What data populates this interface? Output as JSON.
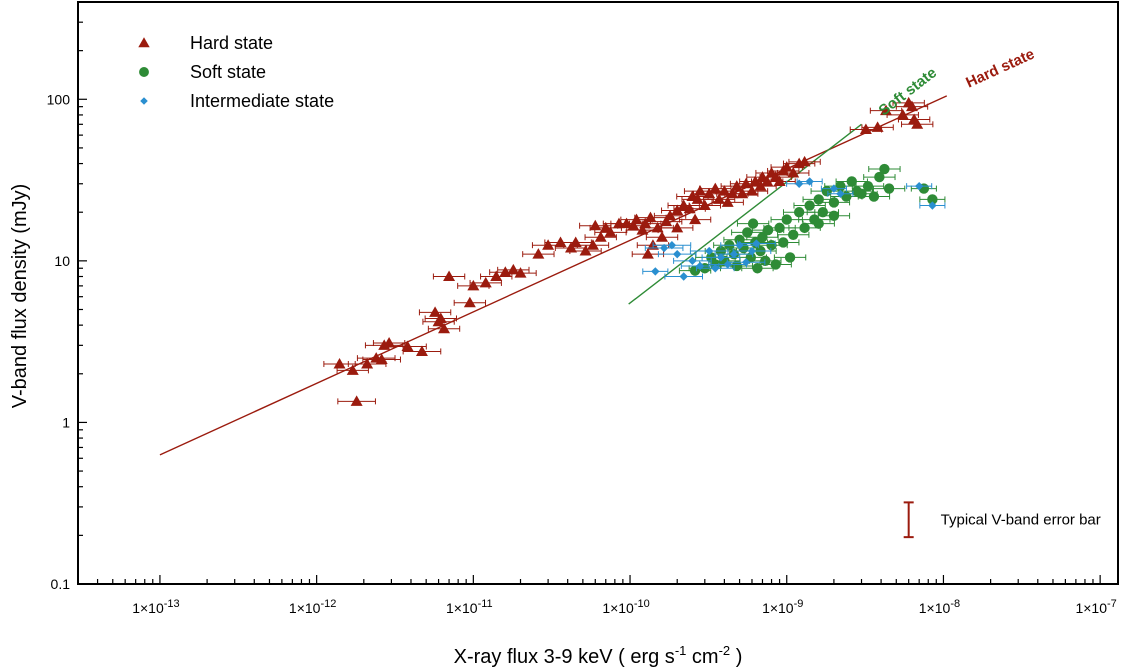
{
  "chart_data": {
    "type": "scatter",
    "x_scale": "log",
    "y_scale": "log",
    "xlim": [
      3e-14,
      1.3e-07
    ],
    "ylim": [
      0.1,
      400
    ],
    "grid": false,
    "legend_position": "top-left",
    "xlabel": {
      "main": "X-ray flux 3-9 keV ( erg s",
      "sup1": "-1",
      "mid": " cm",
      "sup2": "-2",
      "end": " )"
    },
    "ylabel": "V-band flux density (mJy)",
    "x_ticks": [
      {
        "value": 1e-13,
        "base": "1×10",
        "exp": "-13"
      },
      {
        "value": 1e-12,
        "base": "1×10",
        "exp": "-12"
      },
      {
        "value": 1e-11,
        "base": "1×10",
        "exp": "-11"
      },
      {
        "value": 1e-10,
        "base": "1×10",
        "exp": "-10"
      },
      {
        "value": 1e-09,
        "base": "1×10",
        "exp": "-9"
      },
      {
        "value": 1e-08,
        "base": "1×10",
        "exp": "-8"
      },
      {
        "value": 1e-07,
        "base": "1×10",
        "exp": "-7"
      }
    ],
    "y_ticks": [
      {
        "value": 0.1,
        "label": "0.1"
      },
      {
        "value": 1,
        "label": "1"
      },
      {
        "value": 10,
        "label": "10"
      },
      {
        "value": 100,
        "label": "100"
      }
    ],
    "colors": {
      "hard": "#9b1b0e",
      "soft": "#2e8b36",
      "intermediate": "#2a8fd0"
    },
    "legend": [
      {
        "key": "hard",
        "label": "Hard state",
        "marker": "triangle"
      },
      {
        "key": "soft",
        "label": "Soft state",
        "marker": "circle"
      },
      {
        "key": "intermediate",
        "label": "Intermediate state",
        "marker": "diamond"
      }
    ],
    "fit_lines": [
      {
        "key": "hard",
        "label": "Hard state",
        "x": [
          1e-13,
          1.05e-08
        ],
        "y": [
          0.63,
          105
        ]
      },
      {
        "key": "soft",
        "label": "Soft state",
        "x": [
          9.8e-11,
          3e-09
        ],
        "y": [
          5.4,
          70
        ]
      }
    ],
    "annotation": {
      "text": "Typical V-band error bar",
      "x": 6e-09,
      "y": 0.25,
      "err_low": 0.195,
      "err_high": 0.32
    },
    "series": [
      {
        "name": "Hard state",
        "key": "hard",
        "marker": "triangle",
        "points": [
          [
            1.4e-12,
            2.3,
            0.1
          ],
          [
            1.7e-12,
            2.1,
            0.1
          ],
          [
            1.8e-12,
            1.35,
            0.12
          ],
          [
            2.1e-12,
            2.3,
            0.12
          ],
          [
            2.4e-12,
            2.5,
            0.12
          ],
          [
            2.6e-12,
            2.45,
            0.12
          ],
          [
            2.7e-12,
            3.0,
            0.12
          ],
          [
            2.9e-12,
            3.1,
            0.1
          ],
          [
            3.8e-12,
            2.95,
            0.12
          ],
          [
            4.7e-12,
            2.75,
            0.12
          ],
          [
            5.7e-12,
            4.8,
            0.1
          ],
          [
            6.2e-12,
            4.4,
            0.1
          ],
          [
            6.5e-12,
            3.8,
            0.1
          ],
          [
            6e-12,
            4.2,
            0.1
          ],
          [
            7e-12,
            8.0,
            0.1
          ],
          [
            9.5e-12,
            5.5,
            0.1
          ],
          [
            1e-11,
            7.0,
            0.1
          ],
          [
            1.2e-11,
            7.3,
            0.1
          ],
          [
            1.4e-11,
            8.0,
            0.1
          ],
          [
            1.6e-11,
            8.5,
            0.1
          ],
          [
            1.8e-11,
            8.8,
            0.1
          ],
          [
            2e-11,
            8.4,
            0.1
          ],
          [
            2.6e-11,
            11.0,
            0.1
          ],
          [
            3e-11,
            12.5,
            0.1
          ],
          [
            3.6e-11,
            13.0,
            0.1
          ],
          [
            4.2e-11,
            12.0,
            0.1
          ],
          [
            4.5e-11,
            13.0,
            0.1
          ],
          [
            5.2e-11,
            11.5,
            0.1
          ],
          [
            5.8e-11,
            12.5,
            0.1
          ],
          [
            6.5e-11,
            14.0,
            0.1
          ],
          [
            7e-11,
            16.0,
            0.1
          ],
          [
            7.5e-11,
            15.0,
            0.1
          ],
          [
            6e-11,
            16.5,
            0.1
          ],
          [
            8.5e-11,
            17.0,
            0.1
          ],
          [
            9.5e-11,
            17.0,
            0.1
          ],
          [
            1.05e-10,
            16.5,
            0.1
          ],
          [
            1.1e-10,
            18.0,
            0.1
          ],
          [
            1.2e-10,
            15.5,
            0.1
          ],
          [
            1.25e-10,
            17.0,
            0.1
          ],
          [
            1.35e-10,
            18.5,
            0.1
          ],
          [
            1.4e-10,
            12.5,
            0.1
          ],
          [
            1.5e-10,
            16.0,
            0.1
          ],
          [
            1.6e-10,
            14.0,
            0.1
          ],
          [
            1.7e-10,
            17.5,
            0.1
          ],
          [
            1.3e-10,
            11.0,
            0.1
          ],
          [
            1.8e-10,
            19.0,
            0.1
          ],
          [
            2e-10,
            20.5,
            0.1
          ],
          [
            2.2e-10,
            22.0,
            0.1
          ],
          [
            2.4e-10,
            21.0,
            0.1
          ],
          [
            2.5e-10,
            25.0,
            0.1
          ],
          [
            2.7e-10,
            24.0,
            0.1
          ],
          [
            2.8e-10,
            27.0,
            0.1
          ],
          [
            3e-10,
            22.0,
            0.1
          ],
          [
            3.2e-10,
            26.0,
            0.1
          ],
          [
            3.5e-10,
            28.0,
            0.1
          ],
          [
            3.7e-10,
            24.0,
            0.1
          ],
          [
            4e-10,
            27.0,
            0.1
          ],
          [
            4.2e-10,
            23.0,
            0.1
          ],
          [
            4.5e-10,
            26.0,
            0.1
          ],
          [
            4.8e-10,
            29.0,
            0.1
          ],
          [
            5.2e-10,
            26.0,
            0.1
          ],
          [
            5.5e-10,
            30.0,
            0.1
          ],
          [
            6e-10,
            27.0,
            0.1
          ],
          [
            6.3e-10,
            31.0,
            0.1
          ],
          [
            6.8e-10,
            29.0,
            0.1
          ],
          [
            7e-10,
            33.0,
            0.1
          ],
          [
            7.5e-10,
            31.0,
            0.1
          ],
          [
            8e-10,
            35.0,
            0.1
          ],
          [
            8.5e-10,
            33.0,
            0.1
          ],
          [
            9e-10,
            31.0,
            0.1
          ],
          [
            9.5e-10,
            36.0,
            0.1
          ],
          [
            1e-09,
            38.0,
            0.1
          ],
          [
            1.1e-09,
            35.0,
            0.1
          ],
          [
            1.2e-09,
            40.0,
            0.1
          ],
          [
            1.3e-09,
            41.0,
            0.1
          ],
          [
            2.6e-10,
            18.0,
            0.1
          ],
          [
            2e-10,
            16.0,
            0.1
          ],
          [
            3.2e-09,
            65.0,
            0.1
          ],
          [
            3.8e-09,
            67.0,
            0.1
          ],
          [
            4.3e-09,
            85.0,
            0.1
          ],
          [
            5.5e-09,
            80.0,
            0.1
          ],
          [
            6e-09,
            95.0,
            0.1
          ],
          [
            6.3e-09,
            90.0,
            0.1
          ],
          [
            6.5e-09,
            75.0,
            0.1
          ],
          [
            6.8e-09,
            70.0,
            0.1
          ]
        ]
      },
      {
        "name": "Soft state",
        "key": "soft",
        "marker": "circle",
        "points": [
          [
            2.6e-10,
            8.7,
            0.1
          ],
          [
            3e-10,
            9.0,
            0.1
          ],
          [
            3.3e-10,
            10.5,
            0.1
          ],
          [
            3.5e-10,
            9.5,
            0.1
          ],
          [
            3.8e-10,
            11.5,
            0.1
          ],
          [
            4e-10,
            10.0,
            0.1
          ],
          [
            4.3e-10,
            12.5,
            0.1
          ],
          [
            4.6e-10,
            11.0,
            0.1
          ],
          [
            4.8e-10,
            9.3,
            0.1
          ],
          [
            5e-10,
            13.5,
            0.1
          ],
          [
            5.3e-10,
            12.0,
            0.1
          ],
          [
            5.6e-10,
            15.0,
            0.1
          ],
          [
            5.9e-10,
            10.5,
            0.1
          ],
          [
            6.1e-10,
            17.0,
            0.1
          ],
          [
            6.3e-10,
            13.0,
            0.1
          ],
          [
            6.5e-10,
            9.0,
            0.1
          ],
          [
            6.8e-10,
            11.5,
            0.1
          ],
          [
            7e-10,
            14.0,
            0.1
          ],
          [
            7.3e-10,
            10.0,
            0.1
          ],
          [
            7.6e-10,
            15.5,
            0.1
          ],
          [
            8e-10,
            12.5,
            0.1
          ],
          [
            8.5e-10,
            9.5,
            0.1
          ],
          [
            9e-10,
            16.0,
            0.1
          ],
          [
            9.5e-10,
            13.0,
            0.1
          ],
          [
            1e-09,
            18.0,
            0.1
          ],
          [
            1.05e-09,
            10.5,
            0.1
          ],
          [
            1.1e-09,
            14.5,
            0.1
          ],
          [
            1.2e-09,
            20.0,
            0.1
          ],
          [
            1.3e-09,
            16.0,
            0.1
          ],
          [
            1.4e-09,
            22.0,
            0.1
          ],
          [
            1.5e-09,
            18.0,
            0.1
          ],
          [
            1.6e-09,
            24.0,
            0.1
          ],
          [
            1.7e-09,
            20.0,
            0.1
          ],
          [
            1.8e-09,
            27.0,
            0.1
          ],
          [
            2e-09,
            23.0,
            0.1
          ],
          [
            2.2e-09,
            29.0,
            0.1
          ],
          [
            2.4e-09,
            25.0,
            0.1
          ],
          [
            2.6e-09,
            31.0,
            0.1
          ],
          [
            2.8e-09,
            27.0,
            0.1
          ],
          [
            3e-09,
            26.0,
            0.1
          ],
          [
            3.3e-09,
            29.0,
            0.1
          ],
          [
            3.6e-09,
            25.0,
            0.1
          ],
          [
            3.9e-09,
            33.0,
            0.1
          ],
          [
            4.2e-09,
            37.0,
            0.1
          ],
          [
            4.5e-09,
            28.0,
            0.1
          ],
          [
            2e-09,
            19.0,
            0.1
          ],
          [
            1.6e-09,
            17.0,
            0.1
          ],
          [
            7.5e-09,
            28.0,
            0.08
          ],
          [
            8.5e-09,
            24.0,
            0.08
          ]
        ]
      },
      {
        "name": "Intermediate state",
        "key": "intermediate",
        "marker": "diamond",
        "points": [
          [
            1.45e-10,
            8.6,
            0.08
          ],
          [
            1.65e-10,
            12.0,
            0.12
          ],
          [
            1.85e-10,
            12.5,
            0.12
          ],
          [
            2e-10,
            11.0,
            0.12
          ],
          [
            2.2e-10,
            8.0,
            0.12
          ],
          [
            2.5e-10,
            10.0,
            0.12
          ],
          [
            2.8e-10,
            9.3,
            0.12
          ],
          [
            3.2e-10,
            11.5,
            0.12
          ],
          [
            3.5e-10,
            9.0,
            0.12
          ],
          [
            3.8e-10,
            10.5,
            0.12
          ],
          [
            4.2e-10,
            9.5,
            0.12
          ],
          [
            4.6e-10,
            11.0,
            0.12
          ],
          [
            5e-10,
            12.5,
            0.12
          ],
          [
            5.5e-10,
            9.8,
            0.12
          ],
          [
            6e-10,
            11.5,
            0.12
          ],
          [
            6.4e-10,
            12.8,
            0.12
          ],
          [
            1.2e-09,
            30.0,
            0.08
          ],
          [
            1.4e-09,
            31.0,
            0.08
          ],
          [
            2e-09,
            28.0,
            0.08
          ],
          [
            2.2e-09,
            26.0,
            0.08
          ],
          [
            7e-09,
            29.0,
            0.08
          ],
          [
            8.5e-09,
            22.0,
            0.08
          ]
        ]
      }
    ]
  }
}
